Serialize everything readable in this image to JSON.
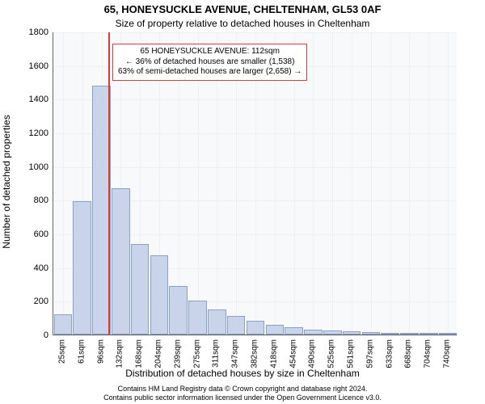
{
  "title_main": "65, HONEYSUCKLE AVENUE, CHELTENHAM, GL53 0AF",
  "title_sub": "Size of property relative to detached houses in Cheltenham",
  "ylabel": "Number of detached properties",
  "xlabel": "Distribution of detached houses by size in Cheltenham",
  "footer_line1": "Contains HM Land Registry data © Crown copyright and database right 2024.",
  "footer_line2": "Contains public sector information licensed under the Open Government Licence v3.0.",
  "chart": {
    "type": "histogram",
    "ylim": [
      0,
      1800
    ],
    "ytick_step": 200,
    "yticks": [
      0,
      200,
      400,
      600,
      800,
      1000,
      1200,
      1400,
      1600,
      1800
    ],
    "xticks": [
      "25sqm",
      "61sqm",
      "96sqm",
      "132sqm",
      "168sqm",
      "204sqm",
      "239sqm",
      "275sqm",
      "311sqm",
      "347sqm",
      "382sqm",
      "418sqm",
      "454sqm",
      "490sqm",
      "525sqm",
      "561sqm",
      "597sqm",
      "633sqm",
      "668sqm",
      "704sqm",
      "740sqm"
    ],
    "values": [
      120,
      790,
      1480,
      870,
      540,
      470,
      290,
      200,
      150,
      110,
      80,
      60,
      45,
      30,
      25,
      20,
      15,
      10,
      10,
      5,
      5
    ],
    "bar_color": "#c9d4ea",
    "bar_border": "#8aa0c7",
    "background_color": "#f8f9fb",
    "grid_color": "#eef0f4",
    "marker_line_color": "#d93b3b",
    "marker_x_index": 2.35,
    "annot_border": "#d93b3b",
    "annot_lines": [
      "65 HONEYSUCKLE AVENUE: 112sqm",
      "← 36% of detached houses are smaller (1,538)",
      "63% of semi-detached houses are larger (2,658) →"
    ]
  }
}
